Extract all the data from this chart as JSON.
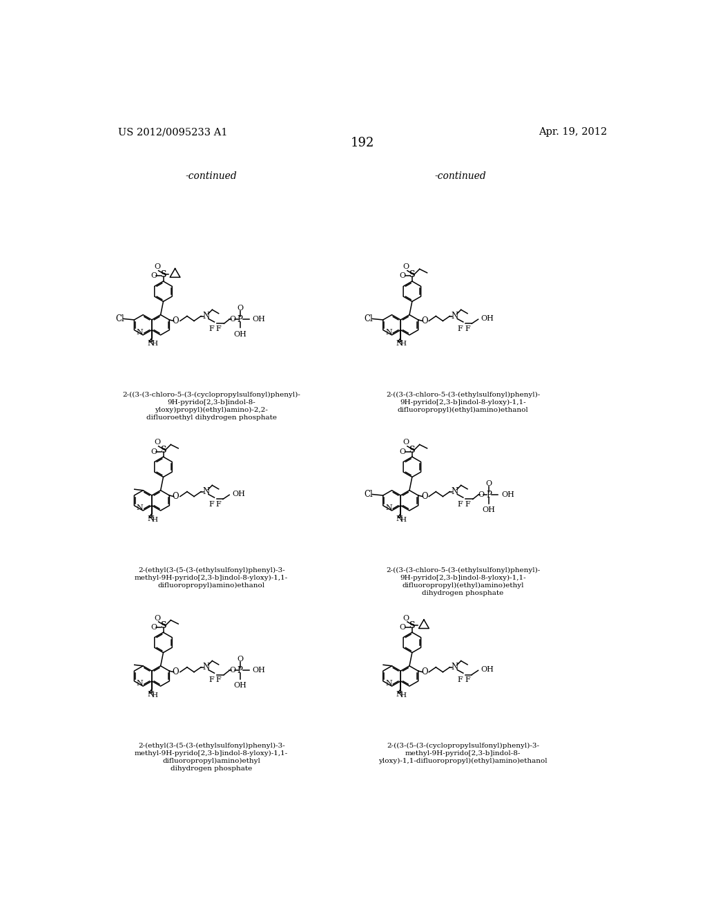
{
  "page_number": "192",
  "patent_left": "US 2012/0095233 A1",
  "patent_right": "Apr. 19, 2012",
  "continued_left": "-continued",
  "continued_right": "-continued",
  "background_color": "#ffffff",
  "text_color": "#000000",
  "captions": [
    "2-((3-(3-chloro-5-(3-(cyclopropylsulfonyl)phenyl)-\n9H-pyrido[2,3-b]indol-8-\nyloxy)propyl)(ethyl)amino)-2,2-\ndifluoroethyl dihydrogen phosphate",
    "2-((3-(3-chloro-5-(3-(ethylsulfonyl)phenyl)-\n9H-pyrido[2,3-b]indol-8-yloxy)-1,1-\ndifluoropropyl)(ethyl)amino)ethanol",
    "2-(ethyl(3-(5-(3-(ethylsulfonyl)phenyl)-3-\nmethyl-9H-pyrido[2,3-b]indol-8-yloxy)-1,1-\ndifluoropropyl)amino)ethanol",
    "2-((3-(3-chloro-5-(3-(ethylsulfonyl)phenyl)-\n9H-pyrido[2,3-b]indol-8-yloxy)-1,1-\ndifluoropropyl)(ethyl)amino)ethyl\ndihydrogen phosphate",
    "2-(ethyl(3-(5-(3-(ethylsulfonyl)phenyl)-3-\nmethyl-9H-pyrido[2,3-b]indol-8-yloxy)-1,1-\ndifluoropropyl)amino)ethyl\ndihydrogen phosphate",
    "2-((3-(5-(3-(cyclopropylsulfonyl)phenyl)-3-\nmethyl-9H-pyrido[2,3-b]indol-8-\nyloxy)-1,1-difluoropropyl)(ethyl)amino)ethanol"
  ],
  "variants": [
    {
      "cyclopropyl": true,
      "has_cl": true,
      "has_methyl": false,
      "has_phosphate": true,
      "chain_propyl": true
    },
    {
      "cyclopropyl": false,
      "has_cl": true,
      "has_methyl": false,
      "has_phosphate": false,
      "chain_propyl": false
    },
    {
      "cyclopropyl": false,
      "has_cl": false,
      "has_methyl": true,
      "has_phosphate": false,
      "chain_propyl": false
    },
    {
      "cyclopropyl": false,
      "has_cl": true,
      "has_methyl": false,
      "has_phosphate": true,
      "chain_propyl": false
    },
    {
      "cyclopropyl": false,
      "has_cl": false,
      "has_methyl": true,
      "has_phosphate": true,
      "chain_propyl": false
    },
    {
      "cyclopropyl": true,
      "has_cl": false,
      "has_methyl": true,
      "has_phosphate": false,
      "chain_propyl": false
    }
  ]
}
